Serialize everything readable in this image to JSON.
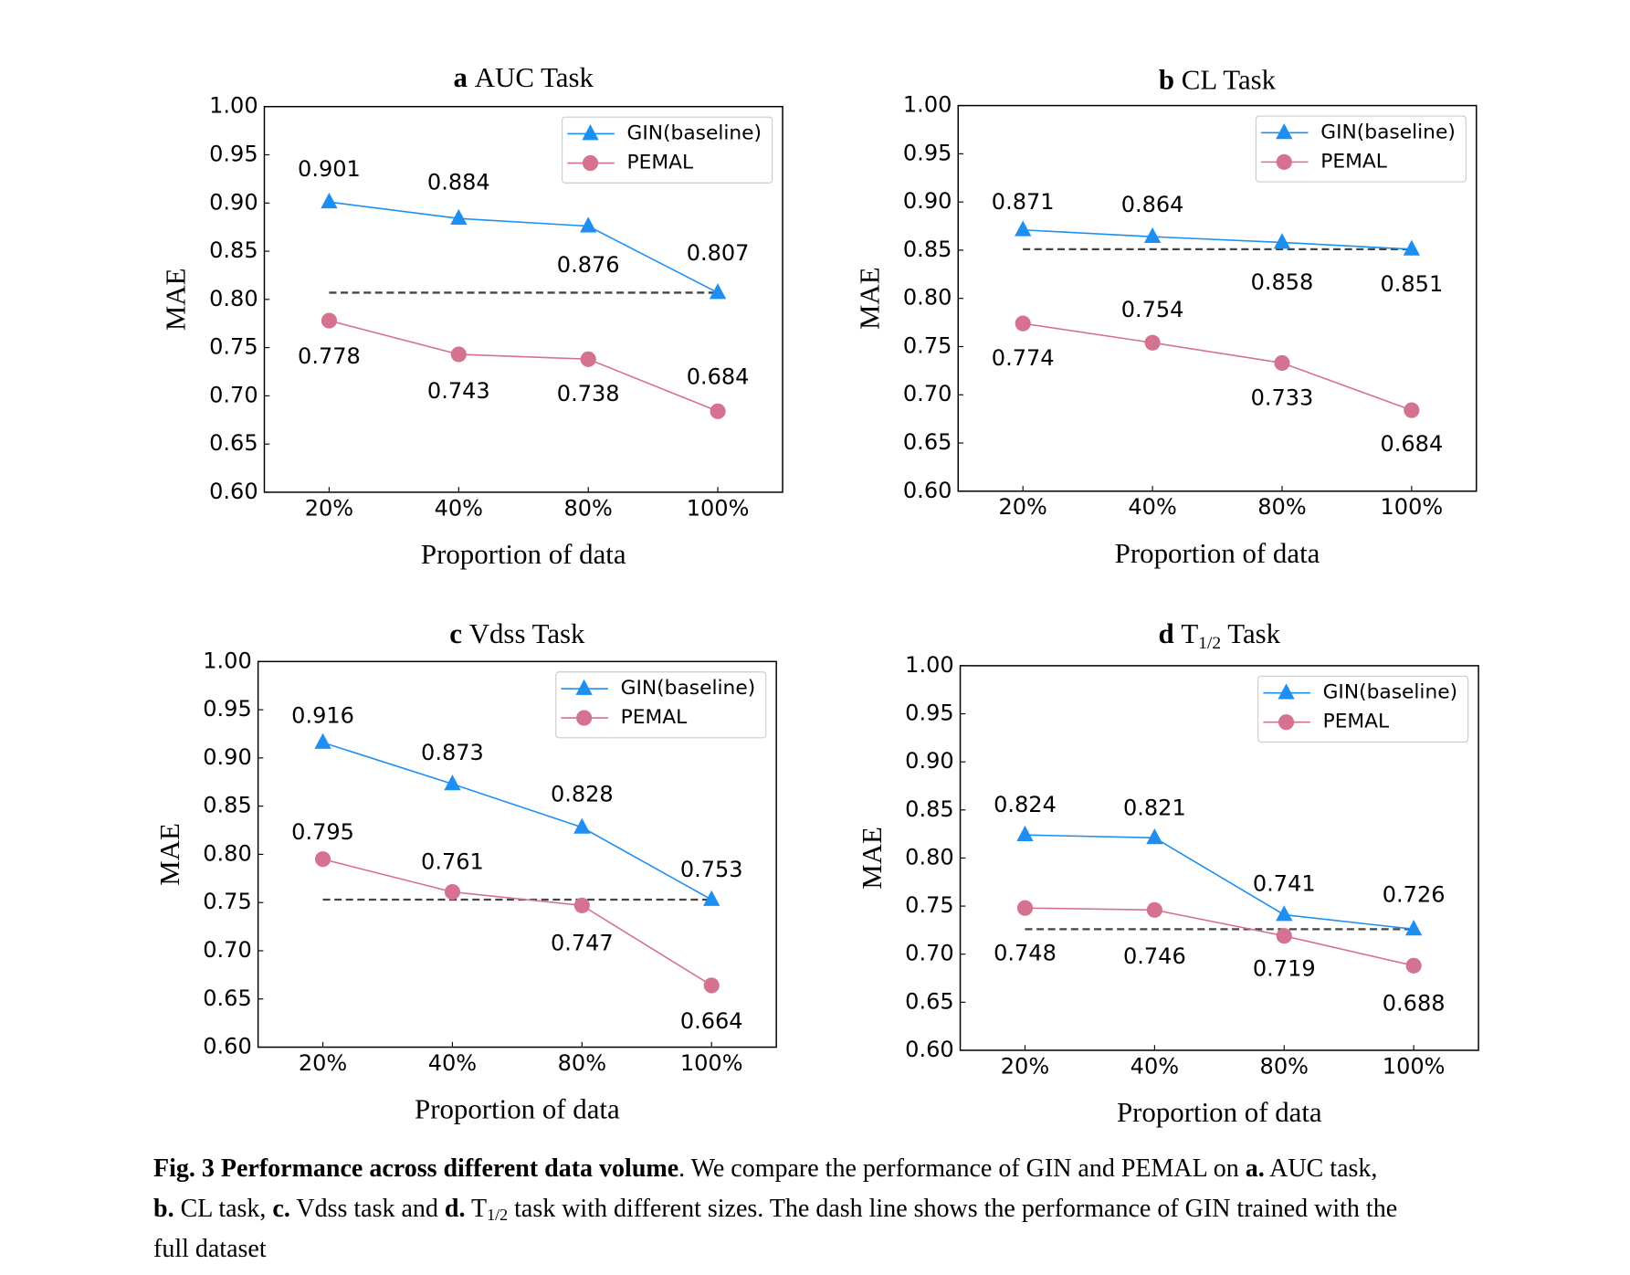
{
  "chart_data": [
    {
      "type": "line",
      "panel_letter": "a",
      "title": "AUC Task",
      "xlabel": "Proportion of data",
      "ylabel": "MAE",
      "categories": [
        "20%",
        "40%",
        "80%",
        "100%"
      ],
      "ylim": [
        0.6,
        1.0
      ],
      "yticks": [
        "0.60",
        "0.65",
        "0.70",
        "0.75",
        "0.80",
        "0.85",
        "0.90",
        "0.95",
        "1.00"
      ],
      "legend_position": "top-right",
      "series": [
        {
          "name": "GIN(baseline)",
          "marker": "triangle",
          "color": "#1E8FF0",
          "values": [
            0.901,
            0.884,
            0.876,
            0.807
          ],
          "labels": [
            "0.901",
            "0.884",
            "0.876",
            "0.807"
          ]
        },
        {
          "name": "PEMAL",
          "marker": "circle",
          "color": "#D4728F",
          "values": [
            0.778,
            0.743,
            0.738,
            0.684
          ],
          "labels": [
            "0.778",
            "0.743",
            "0.738",
            "0.684"
          ]
        }
      ],
      "reference_line": {
        "style": "dashed",
        "color": "#444444",
        "value": 0.807
      }
    },
    {
      "type": "line",
      "panel_letter": "b",
      "title": "CL Task",
      "xlabel": "Proportion of data",
      "ylabel": "MAE",
      "categories": [
        "20%",
        "40%",
        "80%",
        "100%"
      ],
      "ylim": [
        0.6,
        1.0
      ],
      "yticks": [
        "0.60",
        "0.65",
        "0.70",
        "0.75",
        "0.80",
        "0.85",
        "0.90",
        "0.95",
        "1.00"
      ],
      "legend_position": "top-right",
      "series": [
        {
          "name": "GIN(baseline)",
          "marker": "triangle",
          "color": "#1E8FF0",
          "values": [
            0.871,
            0.864,
            0.858,
            0.851
          ],
          "labels": [
            "0.871",
            "0.864",
            "0.858",
            "0.851"
          ]
        },
        {
          "name": "PEMAL",
          "marker": "circle",
          "color": "#D4728F",
          "values": [
            0.774,
            0.754,
            0.733,
            0.684
          ],
          "labels": [
            "0.774",
            "0.754",
            "0.733",
            "0.684"
          ]
        }
      ],
      "reference_line": {
        "style": "dashed",
        "color": "#444444",
        "value": 0.851
      }
    },
    {
      "type": "line",
      "panel_letter": "c",
      "title": "Vdss Task",
      "xlabel": "Proportion of data",
      "ylabel": "MAE",
      "categories": [
        "20%",
        "40%",
        "80%",
        "100%"
      ],
      "ylim": [
        0.6,
        1.0
      ],
      "yticks": [
        "0.60",
        "0.65",
        "0.70",
        "0.75",
        "0.80",
        "0.85",
        "0.90",
        "0.95",
        "1.00"
      ],
      "legend_position": "top-right",
      "series": [
        {
          "name": "GIN(baseline)",
          "marker": "triangle",
          "color": "#1E8FF0",
          "values": [
            0.916,
            0.873,
            0.828,
            0.753
          ],
          "labels": [
            "0.916",
            "0.873",
            "0.828",
            "0.753"
          ]
        },
        {
          "name": "PEMAL",
          "marker": "circle",
          "color": "#D4728F",
          "values": [
            0.795,
            0.761,
            0.747,
            0.664
          ],
          "labels": [
            "0.795",
            "0.761",
            "0.747",
            "0.664"
          ]
        }
      ],
      "reference_line": {
        "style": "dashed",
        "color": "#444444",
        "value": 0.753
      }
    },
    {
      "type": "line",
      "panel_letter": "d",
      "title": "T",
      "title_sub": "1/2",
      "title_suffix": "Task",
      "xlabel": "Proportion of data",
      "ylabel": "MAE",
      "categories": [
        "20%",
        "40%",
        "80%",
        "100%"
      ],
      "ylim": [
        0.6,
        1.0
      ],
      "yticks": [
        "0.60",
        "0.65",
        "0.70",
        "0.75",
        "0.80",
        "0.85",
        "0.90",
        "0.95",
        "1.00"
      ],
      "legend_position": "top-right",
      "series": [
        {
          "name": "GIN(baseline)",
          "marker": "triangle",
          "color": "#1E8FF0",
          "values": [
            0.824,
            0.821,
            0.741,
            0.726
          ],
          "labels": [
            "0.824",
            "0.821",
            "0.741",
            "0.726"
          ]
        },
        {
          "name": "PEMAL",
          "marker": "circle",
          "color": "#D4728F",
          "values": [
            0.748,
            0.746,
            0.719,
            0.688
          ],
          "labels": [
            "0.748",
            "0.746",
            "0.719",
            "0.688"
          ]
        }
      ],
      "reference_line": {
        "style": "dashed",
        "color": "#444444",
        "value": 0.726
      }
    }
  ],
  "caption": {
    "line1": {
      "bold1": "Fig. 3 Performance across different data volume",
      "text1": ". We compare the performance of GIN and PEMAL on ",
      "bold2": "a.",
      "text2": " AUC task,"
    },
    "line2": {
      "bold1": "b.",
      "text1": " CL task, ",
      "bold2": "c.",
      "text2": " Vdss task and ",
      "bold3": "d.",
      "text3": " T",
      "sub": "1/2",
      "text4": " task with different sizes. The dash line shows the performance of GIN trained with the"
    },
    "line3": {
      "text1": "full dataset"
    }
  }
}
